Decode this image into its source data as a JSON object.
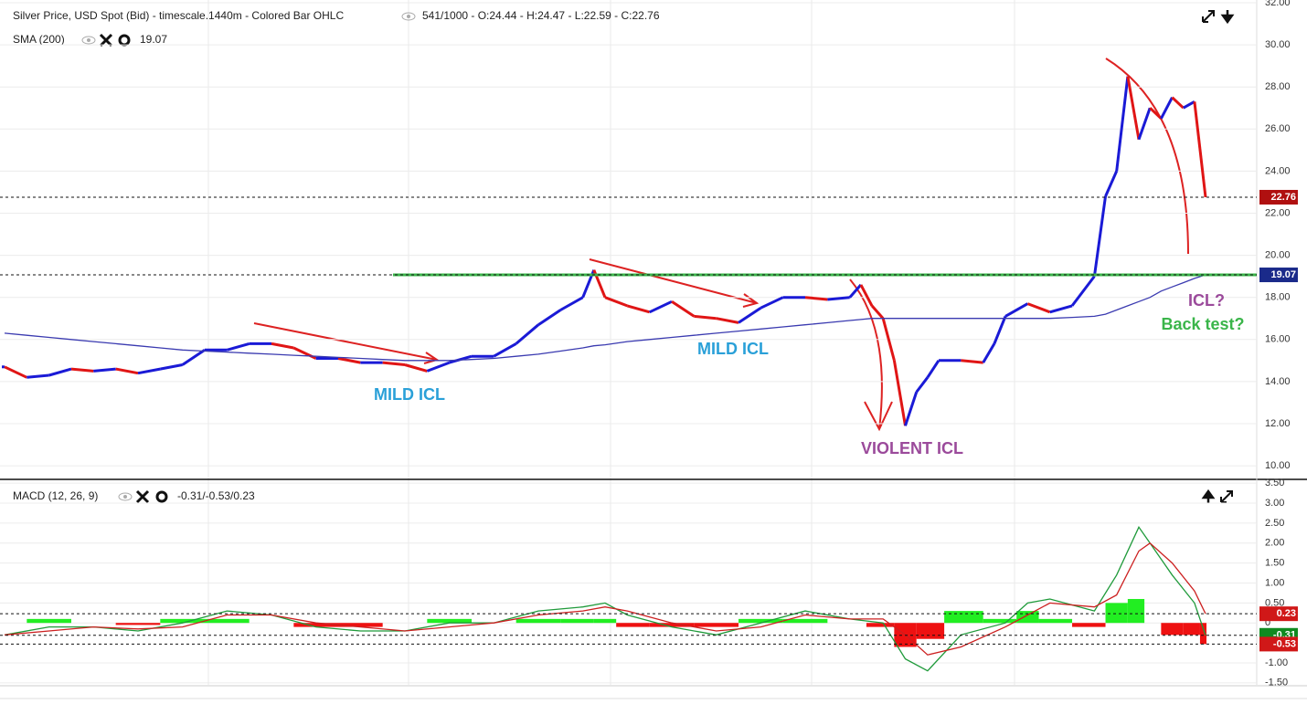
{
  "chart_data": [
    {
      "type": "line",
      "title": "Silver Price, USD Spot (Bid) - timescale.1440m - Colored Bar OHLC",
      "info": "541/1000 - O:24.44 - H:24.47 - L:22.59 - C:22.76",
      "indicator": "SMA (200)",
      "annotations": [
        "MILD ICL",
        "MILD ICL",
        "VIOLENT ICL",
        "ICL?",
        "Back test?"
      ],
      "x": [
        0,
        10,
        20,
        30,
        40,
        50,
        60,
        70,
        80,
        90,
        100,
        110,
        120,
        130,
        140,
        150,
        160,
        170,
        180,
        190,
        200,
        210,
        220,
        230,
        240,
        250,
        260,
        265,
        270,
        280,
        290,
        300,
        310,
        320,
        330,
        340,
        350,
        360,
        370,
        380,
        385,
        390,
        395,
        400,
        405,
        410,
        415,
        420,
        430,
        440,
        445,
        450,
        460,
        470,
        480,
        490,
        495,
        500,
        505,
        510,
        515,
        520,
        525,
        530,
        535,
        540
      ],
      "xlim": [
        0,
        563
      ],
      "ylim": [
        9.44,
        32.13
      ],
      "yticks": [
        {
          "value": 10,
          "label": "10.00"
        },
        {
          "value": 12,
          "label": "12.00"
        },
        {
          "value": 14,
          "label": "14.00"
        },
        {
          "value": 16,
          "label": "16.00"
        },
        {
          "value": 18,
          "label": "18.00"
        },
        {
          "value": 20,
          "label": "20.00"
        },
        {
          "value": 22,
          "label": "22.00"
        },
        {
          "value": 24,
          "label": "24.00"
        },
        {
          "value": 26,
          "label": "26.00"
        },
        {
          "value": 28,
          "label": "28.00"
        },
        {
          "value": 30,
          "label": "30.00"
        },
        {
          "value": 32,
          "label": "32.00"
        }
      ],
      "series": [
        {
          "color_up": "#1a1ad6",
          "color_down": "#e01515",
          "values": [
            14.7,
            14.2,
            14.3,
            14.6,
            14.5,
            14.6,
            14.4,
            14.6,
            14.8,
            15.5,
            15.5,
            15.8,
            15.8,
            15.6,
            15.1,
            15.1,
            14.9,
            14.9,
            14.8,
            14.5,
            14.9,
            15.2,
            15.2,
            15.8,
            16.7,
            17.4,
            18.0,
            19.3,
            18.0,
            17.6,
            17.3,
            17.8,
            17.1,
            17.0,
            16.8,
            17.5,
            18.0,
            18.0,
            17.9,
            18.0,
            18.6,
            17.6,
            17.0,
            15.0,
            11.9,
            13.5,
            14.2,
            15.0,
            15.0,
            14.9,
            15.8,
            17.1,
            17.7,
            17.3,
            17.6,
            19.0,
            22.8,
            24.0,
            28.5,
            25.5,
            27.0,
            26.5,
            27.5,
            27.0,
            27.3,
            22.76
          ]
        },
        {
          "color": "#3a3ab0",
          "values": [
            16.3,
            16.2,
            16.1,
            16.0,
            15.9,
            15.8,
            15.7,
            15.6,
            15.5,
            15.45,
            15.4,
            15.35,
            15.3,
            15.25,
            15.2,
            15.15,
            15.1,
            15.05,
            15.0,
            15.0,
            15.0,
            15.05,
            15.1,
            15.2,
            15.3,
            15.45,
            15.6,
            15.7,
            15.75,
            15.9,
            16.0,
            16.1,
            16.2,
            16.3,
            16.4,
            16.5,
            16.6,
            16.7,
            16.8,
            16.9,
            16.95,
            17.0,
            17.0,
            17.0,
            17.0,
            17.0,
            17.0,
            17.0,
            17.0,
            17.0,
            17.0,
            17.0,
            17.0,
            17.0,
            17.05,
            17.1,
            17.2,
            17.4,
            17.6,
            17.8,
            18.0,
            18.3,
            18.5,
            18.7,
            18.9,
            19.07
          ]
        }
      ]
    },
    {
      "type": "line",
      "title": "MACD (12, 26, 9)",
      "info": "-0.31/-0.53/0.23",
      "x": [
        0,
        20,
        40,
        60,
        80,
        100,
        120,
        140,
        160,
        180,
        200,
        220,
        240,
        260,
        270,
        280,
        300,
        320,
        340,
        360,
        380,
        395,
        405,
        415,
        430,
        450,
        460,
        470,
        490,
        500,
        510,
        515,
        525,
        535,
        540
      ],
      "xlim": [
        0,
        563
      ],
      "ylim": [
        -1.55,
        3.55
      ],
      "yticks": [
        {
          "value": 3.5,
          "label": "3.50"
        },
        {
          "value": 3,
          "label": "3.00"
        },
        {
          "value": 2.5,
          "label": "2.50"
        },
        {
          "value": 2,
          "label": "2.00"
        },
        {
          "value": 1.5,
          "label": "1.50"
        },
        {
          "value": 1,
          "label": "1.00"
        },
        {
          "value": 0.5,
          "label": "0.50"
        },
        0,
        {
          "value": -1,
          "label": "-1.00"
        },
        {
          "value": -1.5,
          "label": "-1.50"
        }
      ],
      "series": [
        {
          "color": "#1f9a3a",
          "values": [
            -0.3,
            -0.1,
            -0.1,
            -0.2,
            0.0,
            0.3,
            0.2,
            -0.1,
            -0.2,
            -0.2,
            0.0,
            0.0,
            0.3,
            0.4,
            0.5,
            0.2,
            -0.1,
            -0.3,
            0.0,
            0.3,
            0.1,
            0.0,
            -0.9,
            -1.2,
            -0.3,
            0.0,
            0.5,
            0.6,
            0.3,
            1.2,
            2.4,
            2.0,
            1.2,
            0.5,
            -0.31
          ]
        },
        {
          "color": "#cc2020",
          "values": [
            -0.3,
            -0.2,
            -0.1,
            -0.15,
            -0.1,
            0.2,
            0.2,
            0.0,
            -0.1,
            -0.2,
            -0.1,
            0.0,
            0.2,
            0.3,
            0.4,
            0.3,
            0.0,
            -0.2,
            -0.1,
            0.2,
            0.1,
            0.1,
            -0.3,
            -0.8,
            -0.6,
            -0.1,
            0.2,
            0.5,
            0.4,
            0.7,
            1.8,
            2.0,
            1.5,
            0.8,
            0.23
          ]
        },
        {
          "type": "bar",
          "color_up": "#22ee22",
          "color_down": "#ee1111",
          "values": [
            0.0,
            0.1,
            0.0,
            -0.05,
            0.1,
            0.1,
            0.0,
            -0.1,
            -0.1,
            0.0,
            0.1,
            0.0,
            0.1,
            0.1,
            0.1,
            -0.1,
            -0.1,
            -0.1,
            0.1,
            0.1,
            0.0,
            -0.1,
            -0.6,
            -0.4,
            0.3,
            0.1,
            0.3,
            0.1,
            -0.1,
            0.5,
            0.6,
            0.0,
            -0.3,
            -0.3,
            -0.53
          ]
        }
      ]
    }
  ]
}
